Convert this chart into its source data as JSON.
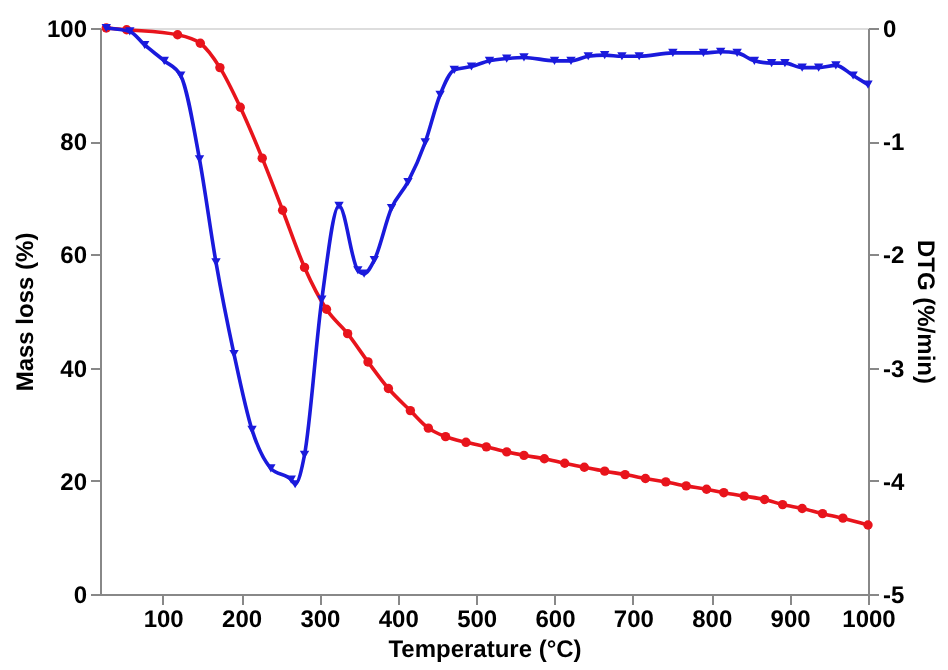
{
  "chart_data": {
    "type": "line",
    "xlabel": "Temperature (°C)",
    "ylabel": "Mass loss (%)",
    "y2label": "DTG (%/min)",
    "xlim": [
      20,
      1000
    ],
    "xticks": [
      100,
      200,
      300,
      400,
      500,
      600,
      700,
      800,
      900,
      1000
    ],
    "ylim": [
      0,
      100
    ],
    "yticks": [
      0,
      20,
      40,
      60,
      80,
      100
    ],
    "y2lim": [
      -5,
      0
    ],
    "y2ticks": [
      -5,
      -4,
      -3,
      -2,
      -1,
      0
    ],
    "grid": false,
    "line_style": "solid",
    "series": [
      {
        "color": "#e8141c",
        "marker": "circle",
        "x": [
          28,
          54,
          119,
          148,
          173,
          199,
          227,
          253,
          281,
          309,
          336,
          362,
          388,
          416,
          439,
          461,
          487,
          513,
          539,
          561,
          587,
          613,
          638,
          664,
          690,
          716,
          742,
          768,
          794,
          816,
          842,
          868,
          891,
          916,
          942,
          968,
          1000
        ],
        "values": [
          100,
          99.7,
          98.8,
          97.3,
          93,
          86,
          77,
          67.8,
          57.7,
          50.3,
          46,
          41,
          36.3,
          32.4,
          29.3,
          27.8,
          26.8,
          26,
          25.1,
          24.5,
          23.9,
          23.1,
          22.4,
          21.7,
          21.1,
          20.4,
          19.8,
          19.1,
          18.5,
          17.9,
          17.3,
          16.7,
          15.8,
          15.1,
          14.2,
          13.4,
          12.2
        ]
      },
      {
        "color": "#1a1adc",
        "marker": "triangle",
        "axis": "y2",
        "x": [
          28,
          58,
          77,
          102,
          123,
          147,
          168,
          191,
          214,
          238,
          264,
          269,
          281,
          303,
          325,
          349,
          357,
          370,
          392,
          413,
          435,
          454,
          472,
          494,
          517,
          539,
          561,
          600,
          621,
          643,
          664,
          686,
          708,
          751,
          790,
          812,
          833,
          855,
          877,
          894,
          916,
          937,
          959,
          981,
          1000
        ],
        "values": [
          0,
          -0.03,
          -0.15,
          -0.29,
          -0.42,
          -1.16,
          -2.07,
          -2.88,
          -3.55,
          -3.89,
          -3.99,
          -4.03,
          -3.77,
          -2.4,
          -1.57,
          -2.14,
          -2.17,
          -2.05,
          -1.59,
          -1.36,
          -1.01,
          -0.59,
          -0.37,
          -0.34,
          -0.29,
          -0.27,
          -0.26,
          -0.29,
          -0.29,
          -0.25,
          -0.24,
          -0.25,
          -0.25,
          -0.22,
          -0.22,
          -0.21,
          -0.22,
          -0.29,
          -0.31,
          -0.31,
          -0.35,
          -0.35,
          -0.33,
          -0.42,
          -0.5
        ]
      }
    ]
  }
}
